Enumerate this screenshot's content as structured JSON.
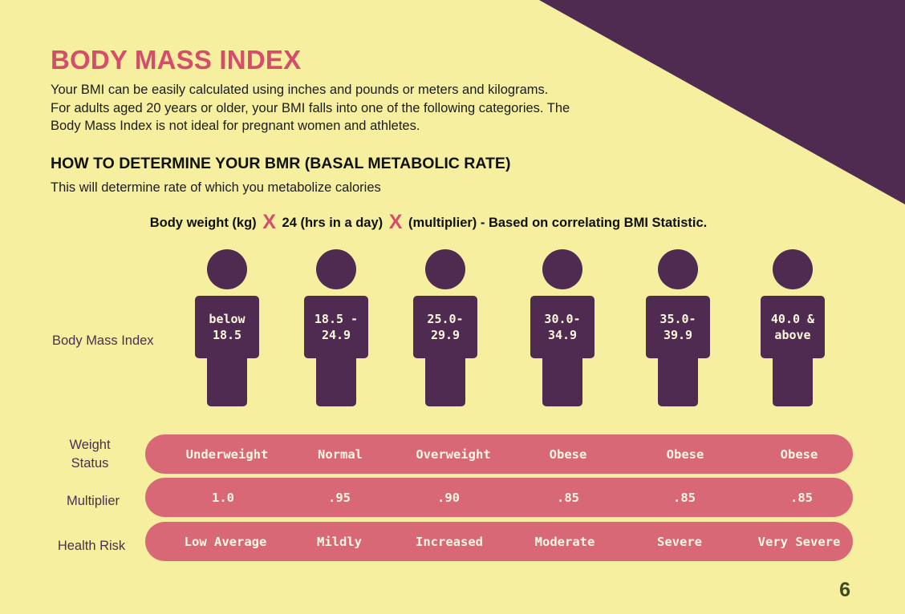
{
  "colors": {
    "background": "#f5ef9f",
    "corner": "#4f2b52",
    "accent": "#d44e6b",
    "pill": "#d96877",
    "figure": "#4f2b52"
  },
  "title": "BODY MASS INDEX",
  "intro": [
    "Your BMI can be easily calculated using inches and pounds or meters and kilograms.",
    "For adults aged 20 years or older, your BMI falls into one of the following categories. The",
    "Body Mass Index is not ideal for pregnant women and athletes."
  ],
  "bmr": {
    "heading": "HOW TO DETERMINE YOUR BMR (BASAL METABOLIC RATE)",
    "subtext": "This will determine rate of which you metabolize calories",
    "formula": {
      "part1": "Body weight (kg)",
      "times_glyph": "X",
      "part2": "24 (hrs in a day)",
      "part3": "(multiplier) - Based on correlating BMI Statistic."
    }
  },
  "labels": {
    "bmi": "Body Mass Index",
    "weight_status": [
      "Weight",
      "Status"
    ],
    "multiplier": "Multiplier",
    "health_risk": "Health Risk"
  },
  "categories": [
    {
      "bmi": "below\n18.5",
      "status": "Underweight",
      "multiplier": "1.0",
      "risk": "Low Average"
    },
    {
      "bmi": "18.5 -\n24.9",
      "status": "Normal",
      "multiplier": ".95",
      "risk": "Mildly"
    },
    {
      "bmi": "25.0-\n29.9",
      "status": "Overweight",
      "multiplier": ".90",
      "risk": "Increased"
    },
    {
      "bmi": "30.0-\n34.9",
      "status": "Obese",
      "multiplier": ".85",
      "risk": "Moderate"
    },
    {
      "bmi": "35.0-\n39.9",
      "status": "Obese",
      "multiplier": ".85",
      "risk": "Severe"
    },
    {
      "bmi": "40.0 &\nabove",
      "status": "Obese",
      "multiplier": ".85",
      "risk": "Very Severe"
    }
  ],
  "page_number": "6"
}
